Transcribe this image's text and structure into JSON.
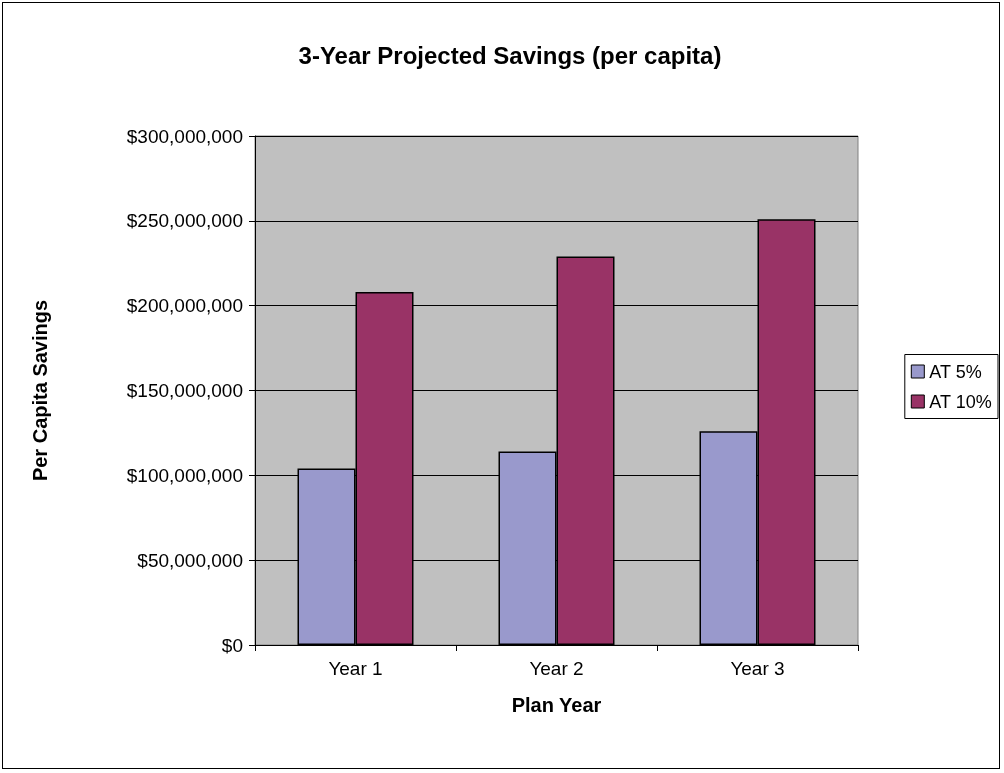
{
  "chart_data": {
    "type": "bar",
    "title": "3-Year Projected Savings (per capita)",
    "xlabel": "Plan Year",
    "ylabel": "Per Capita Savings",
    "categories": [
      "Year 1",
      "Year 2",
      "Year 3"
    ],
    "series": [
      {
        "name": "AT 5%",
        "color": "#9999cc",
        "values": [
          104000000,
          114000000,
          126000000
        ]
      },
      {
        "name": "AT 10%",
        "color": "#993366",
        "values": [
          208000000,
          229000000,
          251000000
        ]
      }
    ],
    "ylim": [
      0,
      300000000
    ],
    "yticks": [
      {
        "value": 0,
        "label": "$0"
      },
      {
        "value": 50000000,
        "label": "$50,000,000"
      },
      {
        "value": 100000000,
        "label": "$100,000,000"
      },
      {
        "value": 150000000,
        "label": "$150,000,000"
      },
      {
        "value": 200000000,
        "label": "$200,000,000"
      },
      {
        "value": 250000000,
        "label": "$250,000,000"
      },
      {
        "value": 300000000,
        "label": "$300,000,000"
      }
    ],
    "grid": "y",
    "legend": "right"
  }
}
